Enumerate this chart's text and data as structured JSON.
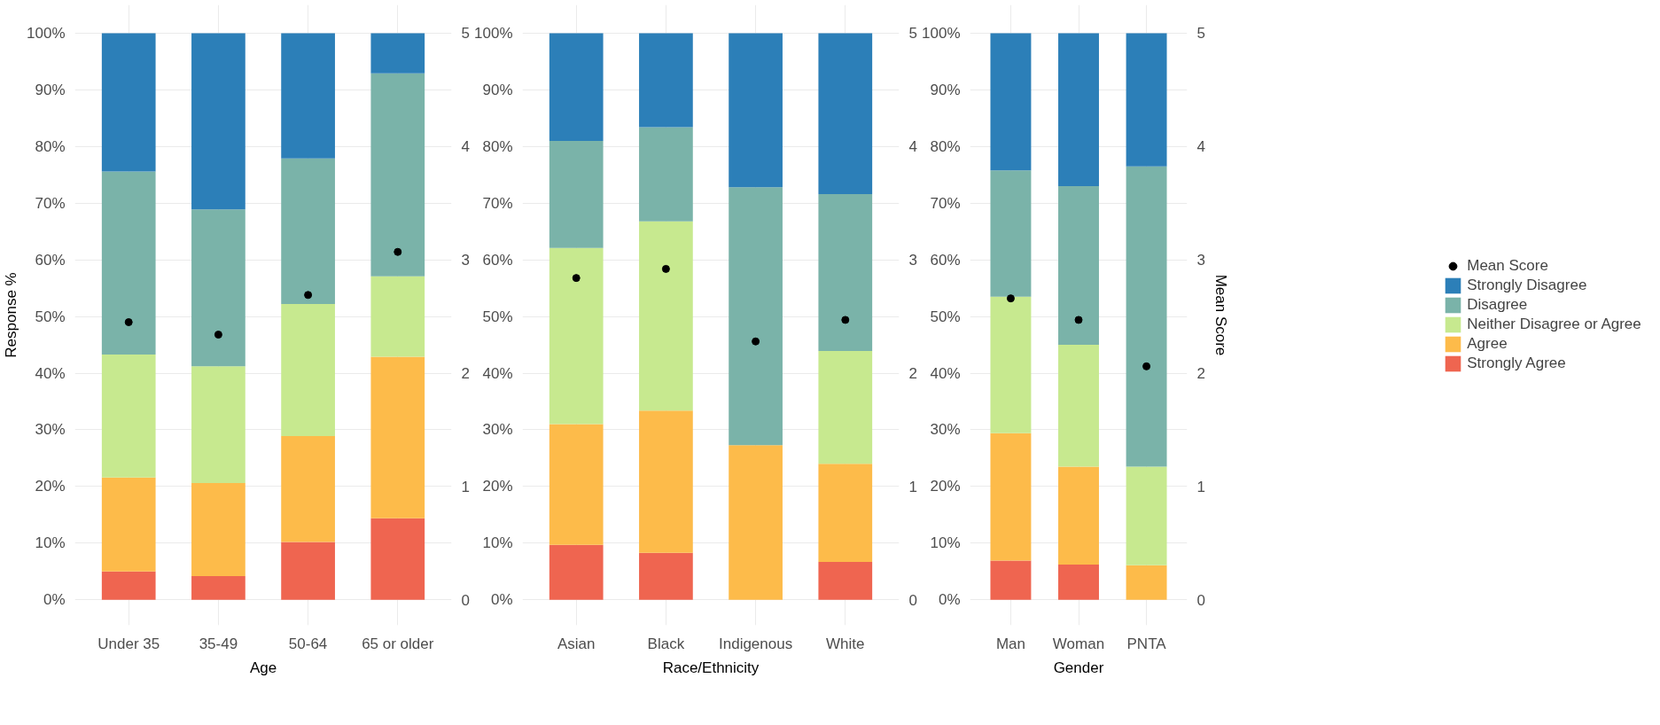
{
  "chart_data": [
    {
      "type": "bar",
      "stacked": true,
      "xlabel": "Age",
      "ylabel": "Response %",
      "categories": [
        "Under 35",
        "35-49",
        "50-64",
        "65 or older"
      ],
      "ylim": [
        -4.5,
        105
      ],
      "yticks": [
        {
          "value": 0,
          "label": "0%"
        },
        {
          "value": 10,
          "label": "10%"
        },
        {
          "value": 20,
          "label": "20%"
        },
        {
          "value": 30,
          "label": "30%"
        },
        {
          "value": 40,
          "label": "40%"
        },
        {
          "value": 50,
          "label": "50%"
        },
        {
          "value": 60,
          "label": "60%"
        },
        {
          "value": 70,
          "label": "70%"
        },
        {
          "value": 80,
          "label": "80%"
        },
        {
          "value": 90,
          "label": "90%"
        },
        {
          "value": 100,
          "label": "100%"
        }
      ],
      "y2lim": [
        -0.225,
        5.25
      ],
      "y2ticks": [
        0,
        1,
        2,
        3,
        4,
        5
      ],
      "grid": true,
      "legend": false,
      "series": [
        {
          "color": "#ef6550",
          "values": [
            5.0,
            4.2,
            10.2,
            14.4
          ]
        },
        {
          "color": "#fdbb4a",
          "values": [
            16.6,
            16.4,
            18.7,
            28.5
          ]
        },
        {
          "color": "#c7e98f",
          "values": [
            21.7,
            20.6,
            23.3,
            14.2
          ]
        },
        {
          "color": "#7ab3a9",
          "values": [
            32.3,
            27.7,
            25.7,
            35.8
          ]
        },
        {
          "color": "#2c7fb8",
          "values": [
            24.4,
            31.1,
            22.1,
            7.1
          ]
        },
        {
          "type": "scatter",
          "axis": "y2",
          "marker": "circle",
          "color": "#000000",
          "x": [
            "Under 35",
            "35-49",
            "50-64",
            "65 or older"
          ],
          "values": [
            2.45,
            2.34,
            2.69,
            3.07
          ]
        }
      ]
    },
    {
      "type": "bar",
      "stacked": true,
      "xlabel": "Race/Ethnicity",
      "categories": [
        "Asian",
        "Black",
        "Indigenous",
        "White"
      ],
      "ylim": [
        -4.5,
        105
      ],
      "yticks": [
        {
          "value": 0,
          "label": "0%"
        },
        {
          "value": 10,
          "label": "10%"
        },
        {
          "value": 20,
          "label": "20%"
        },
        {
          "value": 30,
          "label": "30%"
        },
        {
          "value": 40,
          "label": "40%"
        },
        {
          "value": 50,
          "label": "50%"
        },
        {
          "value": 60,
          "label": "60%"
        },
        {
          "value": 70,
          "label": "70%"
        },
        {
          "value": 80,
          "label": "80%"
        },
        {
          "value": 90,
          "label": "90%"
        },
        {
          "value": 100,
          "label": "100%"
        }
      ],
      "y2lim": [
        -0.225,
        5.25
      ],
      "y2ticks": [
        0,
        1,
        2,
        3,
        4,
        5
      ],
      "grid": true,
      "legend": false,
      "series": [
        {
          "color": "#ef6550",
          "values": [
            9.7,
            8.3,
            0,
            6.7
          ]
        },
        {
          "color": "#fdbb4a",
          "values": [
            21.3,
            25.1,
            27.3,
            17.3
          ]
        },
        {
          "color": "#c7e98f",
          "values": [
            31.1,
            33.4,
            0,
            19.9
          ]
        },
        {
          "color": "#7ab3a9",
          "values": [
            18.9,
            16.6,
            45.5,
            27.7
          ]
        },
        {
          "color": "#2c7fb8",
          "values": [
            19.0,
            16.6,
            27.2,
            28.4
          ]
        },
        {
          "type": "scatter",
          "axis": "y2",
          "marker": "circle",
          "color": "#000000",
          "x": [
            "Asian",
            "Black",
            "Indigenous",
            "White"
          ],
          "values": [
            2.84,
            2.92,
            2.28,
            2.47
          ]
        }
      ]
    },
    {
      "type": "bar",
      "stacked": true,
      "xlabel": "Gender",
      "y2label": "Mean Score",
      "categories": [
        "Man",
        "Woman",
        "PNTA"
      ],
      "ylim": [
        -4.5,
        105
      ],
      "yticks": [
        {
          "value": 0,
          "label": "0%"
        },
        {
          "value": 10,
          "label": "10%"
        },
        {
          "value": 20,
          "label": "20%"
        },
        {
          "value": 30,
          "label": "30%"
        },
        {
          "value": 40,
          "label": "40%"
        },
        {
          "value": 50,
          "label": "50%"
        },
        {
          "value": 60,
          "label": "60%"
        },
        {
          "value": 70,
          "label": "70%"
        },
        {
          "value": 80,
          "label": "80%"
        },
        {
          "value": 90,
          "label": "90%"
        },
        {
          "value": 100,
          "label": "100%"
        }
      ],
      "y2lim": [
        -0.225,
        5.25
      ],
      "y2ticks": [
        0,
        1,
        2,
        3,
        4,
        5
      ],
      "grid": true,
      "legend": "right",
      "series": [
        {
          "name": "Strongly Agree",
          "color": "#ef6550",
          "values": [
            6.9,
            6.2,
            0
          ]
        },
        {
          "name": "Agree",
          "color": "#fdbb4a",
          "values": [
            22.5,
            17.3,
            6.1
          ]
        },
        {
          "name": "Neither Disagree or Agree",
          "color": "#c7e98f",
          "values": [
            24.1,
            21.5,
            17.4
          ]
        },
        {
          "name": "Disagree",
          "color": "#7ab3a9",
          "values": [
            22.3,
            28.0,
            53.0
          ]
        },
        {
          "name": "Strongly Disagree",
          "color": "#2c7fb8",
          "values": [
            24.2,
            27.0,
            23.5
          ]
        },
        {
          "type": "scatter",
          "axis": "y2",
          "marker": "circle",
          "name": "Mean Score",
          "color": "#000000",
          "x": [
            "Man",
            "Woman",
            "PNTA"
          ],
          "values": [
            2.66,
            2.47,
            2.06
          ]
        }
      ]
    }
  ]
}
